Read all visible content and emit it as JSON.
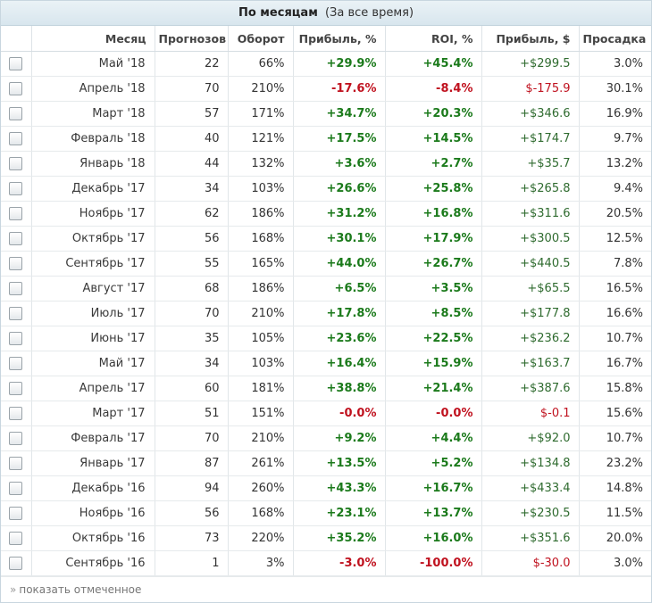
{
  "header": {
    "title": "По месяцам",
    "subtitle": "(За все время)"
  },
  "columns": [
    "Месяц",
    "Прогнозов",
    "Оборот",
    "Прибыль, %",
    "ROI, %",
    "Прибыль, $",
    "Просадка"
  ],
  "rows": [
    {
      "month": "Май '18",
      "forecasts": "22",
      "turnover": "66%",
      "profit_pct": "+29.9%",
      "roi": "+45.4%",
      "profit_usd": "+$299.5",
      "drawdown": "3.0%",
      "sign": "pos"
    },
    {
      "month": "Апрель '18",
      "forecasts": "70",
      "turnover": "210%",
      "profit_pct": "-17.6%",
      "roi": "-8.4%",
      "profit_usd": "$-175.9",
      "drawdown": "30.1%",
      "sign": "neg"
    },
    {
      "month": "Март '18",
      "forecasts": "57",
      "turnover": "171%",
      "profit_pct": "+34.7%",
      "roi": "+20.3%",
      "profit_usd": "+$346.6",
      "drawdown": "16.9%",
      "sign": "pos"
    },
    {
      "month": "Февраль '18",
      "forecasts": "40",
      "turnover": "121%",
      "profit_pct": "+17.5%",
      "roi": "+14.5%",
      "profit_usd": "+$174.7",
      "drawdown": "9.7%",
      "sign": "pos"
    },
    {
      "month": "Январь '18",
      "forecasts": "44",
      "turnover": "132%",
      "profit_pct": "+3.6%",
      "roi": "+2.7%",
      "profit_usd": "+$35.7",
      "drawdown": "13.2%",
      "sign": "pos"
    },
    {
      "month": "Декабрь '17",
      "forecasts": "34",
      "turnover": "103%",
      "profit_pct": "+26.6%",
      "roi": "+25.8%",
      "profit_usd": "+$265.8",
      "drawdown": "9.4%",
      "sign": "pos"
    },
    {
      "month": "Ноябрь '17",
      "forecasts": "62",
      "turnover": "186%",
      "profit_pct": "+31.2%",
      "roi": "+16.8%",
      "profit_usd": "+$311.6",
      "drawdown": "20.5%",
      "sign": "pos"
    },
    {
      "month": "Октябрь '17",
      "forecasts": "56",
      "turnover": "168%",
      "profit_pct": "+30.1%",
      "roi": "+17.9%",
      "profit_usd": "+$300.5",
      "drawdown": "12.5%",
      "sign": "pos"
    },
    {
      "month": "Сентябрь '17",
      "forecasts": "55",
      "turnover": "165%",
      "profit_pct": "+44.0%",
      "roi": "+26.7%",
      "profit_usd": "+$440.5",
      "drawdown": "7.8%",
      "sign": "pos"
    },
    {
      "month": "Август '17",
      "forecasts": "68",
      "turnover": "186%",
      "profit_pct": "+6.5%",
      "roi": "+3.5%",
      "profit_usd": "+$65.5",
      "drawdown": "16.5%",
      "sign": "pos"
    },
    {
      "month": "Июль '17",
      "forecasts": "70",
      "turnover": "210%",
      "profit_pct": "+17.8%",
      "roi": "+8.5%",
      "profit_usd": "+$177.8",
      "drawdown": "16.6%",
      "sign": "pos"
    },
    {
      "month": "Июнь '17",
      "forecasts": "35",
      "turnover": "105%",
      "profit_pct": "+23.6%",
      "roi": "+22.5%",
      "profit_usd": "+$236.2",
      "drawdown": "10.7%",
      "sign": "pos"
    },
    {
      "month": "Май '17",
      "forecasts": "34",
      "turnover": "103%",
      "profit_pct": "+16.4%",
      "roi": "+15.9%",
      "profit_usd": "+$163.7",
      "drawdown": "16.7%",
      "sign": "pos"
    },
    {
      "month": "Апрель '17",
      "forecasts": "60",
      "turnover": "181%",
      "profit_pct": "+38.8%",
      "roi": "+21.4%",
      "profit_usd": "+$387.6",
      "drawdown": "15.8%",
      "sign": "pos"
    },
    {
      "month": "Март '17",
      "forecasts": "51",
      "turnover": "151%",
      "profit_pct": "-0.0%",
      "roi": "-0.0%",
      "profit_usd": "$-0.1",
      "drawdown": "15.6%",
      "sign": "neg"
    },
    {
      "month": "Февраль '17",
      "forecasts": "70",
      "turnover": "210%",
      "profit_pct": "+9.2%",
      "roi": "+4.4%",
      "profit_usd": "+$92.0",
      "drawdown": "10.7%",
      "sign": "pos"
    },
    {
      "month": "Январь '17",
      "forecasts": "87",
      "turnover": "261%",
      "profit_pct": "+13.5%",
      "roi": "+5.2%",
      "profit_usd": "+$134.8",
      "drawdown": "23.2%",
      "sign": "pos"
    },
    {
      "month": "Декабрь '16",
      "forecasts": "94",
      "turnover": "260%",
      "profit_pct": "+43.3%",
      "roi": "+16.7%",
      "profit_usd": "+$433.4",
      "drawdown": "14.8%",
      "sign": "pos"
    },
    {
      "month": "Ноябрь '16",
      "forecasts": "56",
      "turnover": "168%",
      "profit_pct": "+23.1%",
      "roi": "+13.7%",
      "profit_usd": "+$230.5",
      "drawdown": "11.5%",
      "sign": "pos"
    },
    {
      "month": "Октябрь '16",
      "forecasts": "73",
      "turnover": "220%",
      "profit_pct": "+35.2%",
      "roi": "+16.0%",
      "profit_usd": "+$351.6",
      "drawdown": "20.0%",
      "sign": "pos"
    },
    {
      "month": "Сентябрь '16",
      "forecasts": "1",
      "turnover": "3%",
      "profit_pct": "-3.0%",
      "roi": "-100.0%",
      "profit_usd": "$-30.0",
      "drawdown": "3.0%",
      "sign": "neg"
    }
  ],
  "footer": {
    "arrow": "»",
    "link": "показать отмеченное"
  },
  "colors": {
    "positive": "#1b7a1b",
    "negative": "#c0121f",
    "header_bg": "#dce8ef"
  }
}
